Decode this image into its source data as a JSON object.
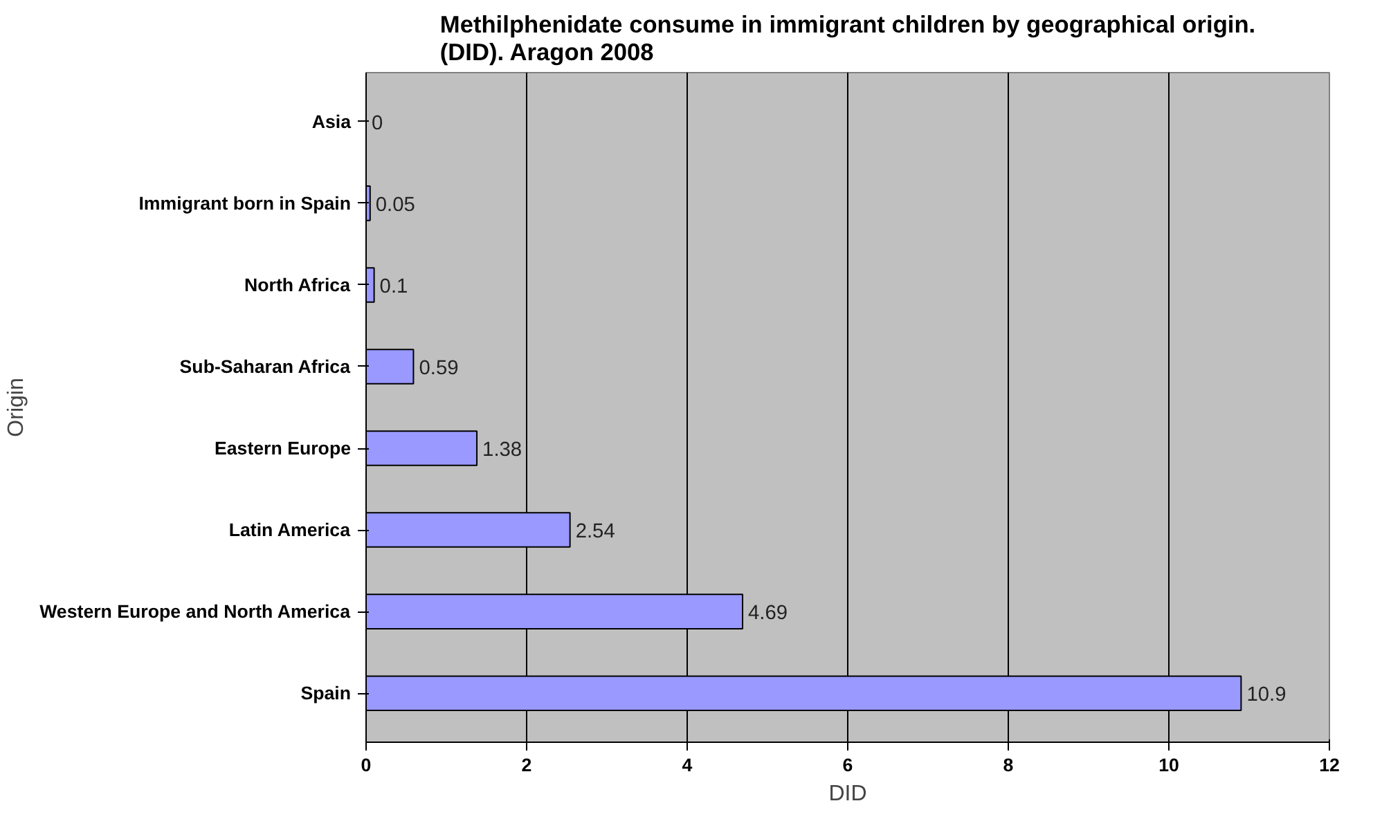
{
  "chart_data": {
    "type": "bar",
    "orientation": "horizontal",
    "title": "Methilphenidate consume in immigrant children by geographical origin. (DID). Aragon 2008",
    "xlabel": "DID",
    "ylabel": "Origin",
    "categories": [
      "Asia",
      "Immigrant born in Spain",
      "North Africa",
      "Sub-Saharan Africa",
      "Eastern Europe",
      "Latin America",
      "Western Europe and North America",
      "Spain"
    ],
    "values": [
      0,
      0.05,
      0.1,
      0.59,
      1.38,
      2.54,
      4.69,
      10.9
    ],
    "color": "#9999ff",
    "xlim": [
      0,
      12
    ],
    "xticks": [
      0,
      2,
      4,
      6,
      8,
      10,
      12
    ],
    "grid": "x",
    "data_labels": true
  }
}
